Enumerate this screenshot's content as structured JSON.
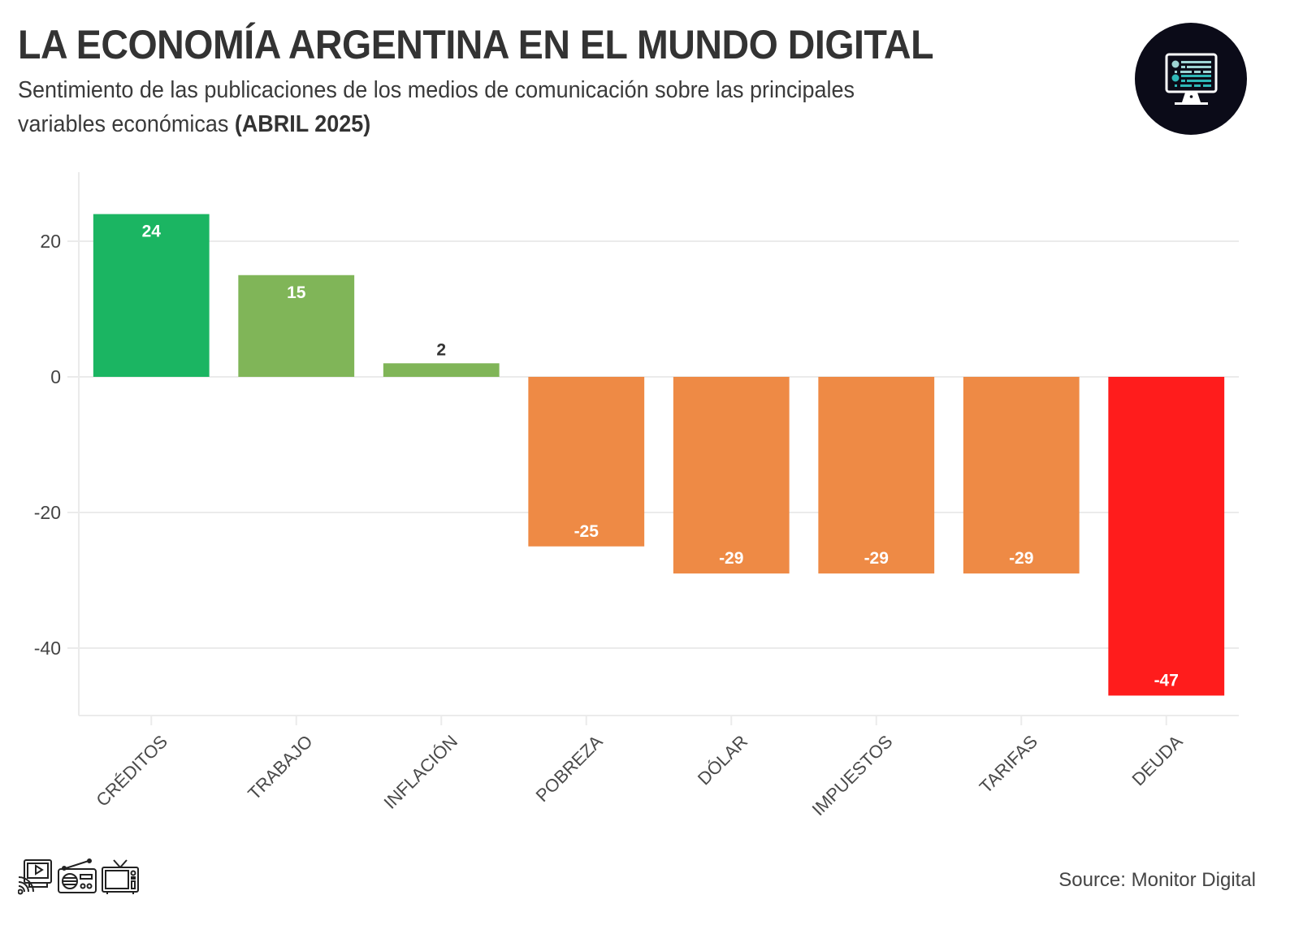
{
  "header": {
    "title": "LA ECONOMÍA ARGENTINA EN EL MUNDO DIGITAL",
    "subtitle_line1": "Sentimiento de las publicaciones de los medios de comunicación sobre las principales",
    "subtitle_line2_regular": "variables económicas ",
    "subtitle_line2_bold": "(ABRIL 2025)"
  },
  "logo": {
    "icon": "monitor-dashboard-icon"
  },
  "footer": {
    "icons": [
      "streaming-icon",
      "radio-icon",
      "television-icon"
    ],
    "source": "Source: Monitor Digital"
  },
  "chart_data": {
    "type": "bar",
    "title": "LA ECONOMÍA ARGENTINA EN EL MUNDO DIGITAL",
    "subtitle": "Sentimiento de las publicaciones de los medios de comunicación sobre las principales variables económicas (ABRIL 2025)",
    "xlabel": "",
    "ylabel": "",
    "categories": [
      "CRÉDITOS",
      "TRABAJO",
      "INFLACIÓN",
      "POBREZA",
      "DÓLAR",
      "IMPUESTOS",
      "TARIFAS",
      "DEUDA"
    ],
    "values": [
      24,
      15,
      2,
      -25,
      -29,
      -29,
      -29,
      -47
    ],
    "data_labels": [
      "24",
      "15",
      "2",
      "-25",
      "-29",
      "-29",
      "-29",
      "-47"
    ],
    "colors": [
      "#1bb562",
      "#80b558",
      "#80b558",
      "#ee8a45",
      "#ee8a45",
      "#ee8a45",
      "#ee8a45",
      "#ff1c1c"
    ],
    "label_colors": [
      "#ffffff",
      "#ffffff",
      "#333333",
      "#ffffff",
      "#ffffff",
      "#ffffff",
      "#ffffff",
      "#ffffff"
    ],
    "yticks": [
      20,
      0,
      -20,
      -40
    ],
    "ytick_labels": [
      "20",
      "0",
      "-20",
      "-40"
    ],
    "ylim": [
      -50,
      30
    ],
    "grid": true,
    "legend": "none"
  }
}
